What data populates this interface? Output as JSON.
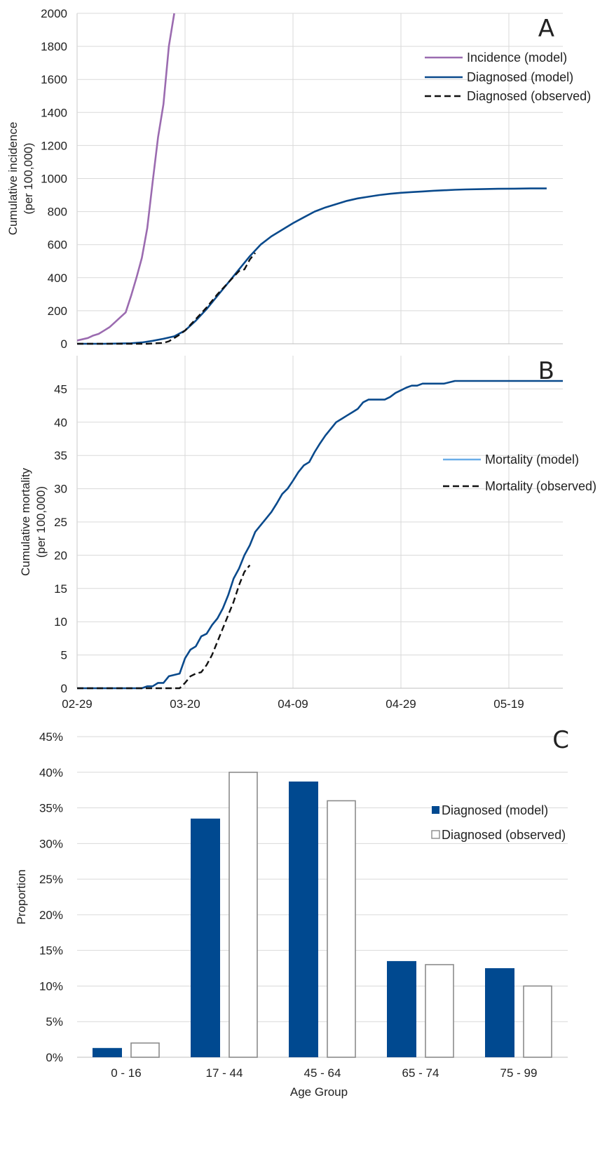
{
  "colors": {
    "incidence": "#9b6bb0",
    "diagnosed_model": "#0a4a8c",
    "observed": "#111111",
    "mortality_legend": "#6aaee8",
    "bar_model": "#004990",
    "bar_observed_edge": "#8c8c8c",
    "grid": "#d9d9d9"
  },
  "chart_data": [
    {
      "panel": "A",
      "type": "line",
      "ylabel_lines": [
        "Cumulative incidence",
        "(per 100,000)"
      ],
      "ylim": [
        0,
        2000
      ],
      "yticks": [
        "0",
        "200",
        "400",
        "600",
        "800",
        "1000",
        "1200",
        "1400",
        "1600",
        "1800",
        "2000"
      ],
      "x_range_days": [
        0,
        90
      ],
      "grid": true,
      "legend_position": "top-right",
      "series": [
        {
          "name": "Incidence (model)",
          "style": "solid",
          "color_key": "incidence",
          "x": [
            0,
            2,
            3,
            4,
            5,
            6,
            7,
            8,
            9,
            10,
            11,
            12,
            13,
            14,
            15,
            16,
            17,
            18
          ],
          "y": [
            20,
            35,
            50,
            60,
            80,
            100,
            130,
            160,
            190,
            290,
            400,
            520,
            700,
            980,
            1250,
            1450,
            1800,
            2000
          ]
        },
        {
          "name": "Diagnosed (model)",
          "style": "solid",
          "color_key": "diagnosed_model",
          "x": [
            0,
            5,
            10,
            12,
            14,
            16,
            18,
            20,
            22,
            24,
            26,
            28,
            30,
            32,
            34,
            36,
            38,
            40,
            42,
            44,
            46,
            48,
            50,
            52,
            54,
            56,
            58,
            60,
            62,
            64,
            66,
            68,
            70,
            72,
            75,
            78,
            81,
            84,
            87
          ],
          "y": [
            0,
            0,
            3,
            8,
            18,
            30,
            45,
            80,
            140,
            210,
            290,
            370,
            450,
            530,
            600,
            650,
            690,
            730,
            765,
            800,
            825,
            845,
            865,
            880,
            890,
            900,
            908,
            914,
            918,
            922,
            926,
            929,
            932,
            934,
            936,
            938,
            939,
            940,
            940
          ]
        },
        {
          "name": "Diagnosed (observed)",
          "style": "dashed",
          "color_key": "observed",
          "x": [
            0,
            5,
            10,
            13,
            16,
            17,
            18,
            19,
            20,
            22,
            24,
            26,
            28,
            30,
            31,
            32,
            33
          ],
          "y": [
            0,
            0,
            0,
            0,
            5,
            15,
            35,
            55,
            80,
            150,
            220,
            300,
            370,
            440,
            450,
            510,
            550
          ]
        }
      ]
    },
    {
      "panel": "B",
      "type": "line",
      "ylabel_lines": [
        "Cumulative mortality",
        "(per 100,000)"
      ],
      "ylim": [
        0,
        50
      ],
      "yticks": [
        "0",
        "5",
        "10",
        "15",
        "20",
        "25",
        "30",
        "35",
        "40",
        "45"
      ],
      "xticks": [
        "02-29",
        "03-20",
        "04-09",
        "04-29",
        "05-19"
      ],
      "x_range_days": [
        0,
        90
      ],
      "grid": true,
      "legend_position": "right",
      "series": [
        {
          "name": "Mortality (model)",
          "style": "solid",
          "color_key": "diagnosed_model",
          "legend_color_key": "mortality_legend",
          "x": [
            0,
            5,
            10,
            12,
            13,
            14,
            15,
            16,
            17,
            18,
            19,
            20,
            21,
            22,
            23,
            24,
            25,
            26,
            27,
            28,
            29,
            30,
            31,
            32,
            33,
            34,
            35,
            36,
            37,
            38,
            39,
            40,
            41,
            42,
            43,
            44,
            45,
            46,
            47,
            48,
            49,
            50,
            51,
            52,
            53,
            54,
            55,
            56,
            57,
            58,
            59,
            60,
            61,
            62,
            63,
            64,
            65,
            66,
            67,
            68,
            70,
            72,
            74,
            76,
            78,
            80,
            85,
            90
          ],
          "y": [
            0,
            0,
            0,
            0,
            0.3,
            0.3,
            0.8,
            0.8,
            1.8,
            2,
            2.2,
            4.5,
            5.8,
            6.3,
            7.8,
            8.2,
            9.5,
            10.5,
            12,
            14,
            16.5,
            18,
            20,
            21.5,
            23.5,
            24.5,
            25.5,
            26.5,
            27.8,
            29.2,
            30,
            31.2,
            32.5,
            33.5,
            34,
            35.5,
            36.8,
            38,
            39,
            40,
            40.5,
            41,
            41.5,
            42,
            43,
            43.4,
            43.4,
            43.4,
            43.4,
            43.8,
            44.4,
            44.8,
            45.2,
            45.5,
            45.5,
            45.8,
            45.8,
            45.8,
            45.8,
            45.8,
            46.2,
            46.2,
            46.2,
            46.2,
            46.2,
            46.2,
            46.2,
            46.2
          ]
        },
        {
          "name": "Mortality (observed)",
          "style": "dashed",
          "color_key": "observed",
          "x": [
            0,
            5,
            10,
            15,
            19,
            20,
            21,
            22,
            23,
            24,
            25,
            26,
            27,
            28,
            29,
            30,
            31,
            32
          ],
          "y": [
            0,
            0,
            0,
            0,
            0,
            0.8,
            1.8,
            2.2,
            2.4,
            3.5,
            5,
            7,
            9,
            11,
            13,
            15.5,
            17.5,
            18.5
          ]
        }
      ]
    },
    {
      "panel": "C",
      "type": "bar",
      "xlabel": "Age Group",
      "ylabel": "Proportion",
      "ylim": [
        0,
        45
      ],
      "yticks": [
        "0%",
        "5%",
        "10%",
        "15%",
        "20%",
        "25%",
        "30%",
        "35%",
        "40%",
        "45%"
      ],
      "categories": [
        "0 - 16",
        "17 - 44",
        "45 - 64",
        "65 - 74",
        "75 - 99"
      ],
      "grid": true,
      "legend_position": "top-right",
      "series": [
        {
          "name": "Diagnosed (model)",
          "fill_key": "bar_model",
          "values": [
            1.3,
            33.5,
            38.7,
            13.5,
            12.5
          ]
        },
        {
          "name": "Diagnosed (observed)",
          "fill_key": "none",
          "values": [
            2.0,
            40.0,
            36.0,
            13.0,
            10.0
          ]
        }
      ]
    }
  ]
}
